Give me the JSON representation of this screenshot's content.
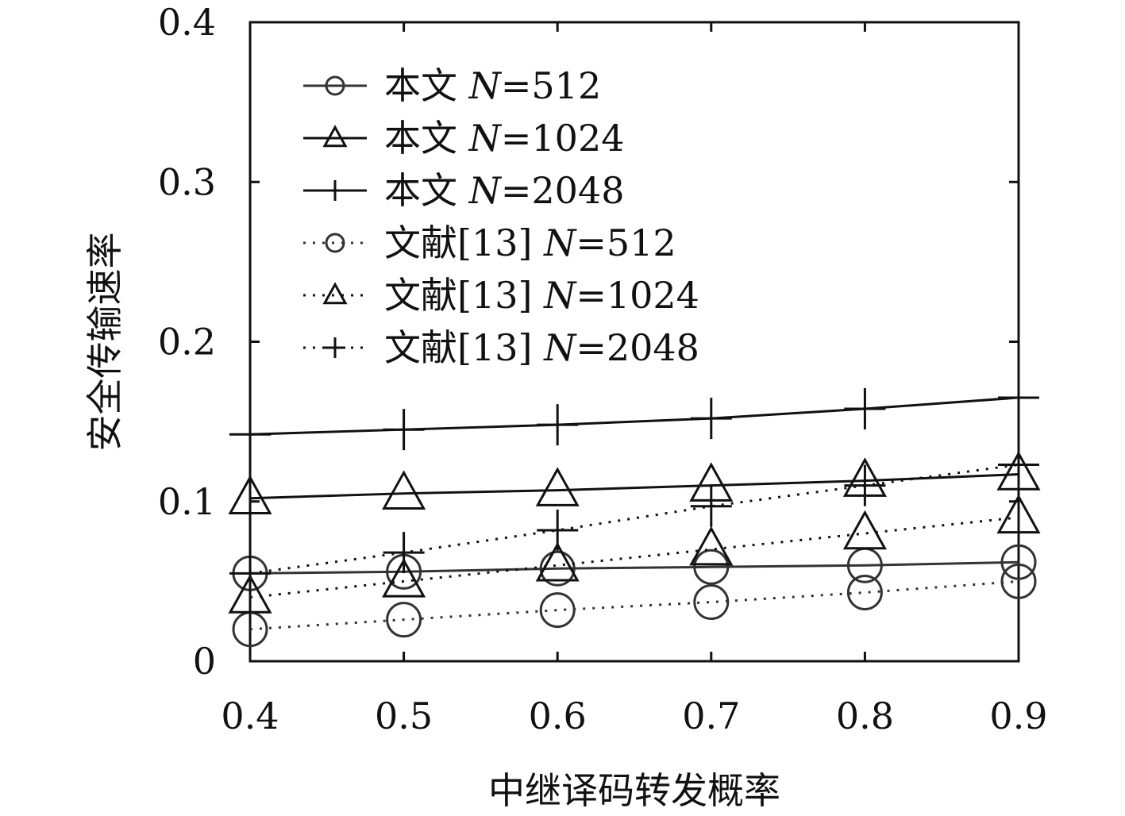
{
  "chart_data": {
    "type": "line",
    "title": "",
    "xlabel": "中继译码转发概率",
    "ylabel": "安全传输速率",
    "x": [
      0.4,
      0.5,
      0.6,
      0.7,
      0.8,
      0.9
    ],
    "xticks": [
      "0.4",
      "0.5",
      "0.6",
      "0.7",
      "0.8",
      "0.9"
    ],
    "yticks": [
      "0",
      "0.1",
      "0.2",
      "0.3",
      "0.4"
    ],
    "xlim": [
      0.4,
      0.9
    ],
    "ylim": [
      0,
      0.4
    ],
    "grid": false,
    "legend_position": "top-left",
    "series": [
      {
        "name": "本文 N=512",
        "prefix": "本文",
        "n_label": "N",
        "n_value": "=512",
        "marker": "circle",
        "line": "solid",
        "color": "#333333",
        "values": [
          0.055,
          0.056,
          0.058,
          0.059,
          0.06,
          0.062
        ]
      },
      {
        "name": "本文 N=1024",
        "prefix": "本文",
        "n_label": "N",
        "n_value": "=1024",
        "marker": "triangle",
        "line": "solid",
        "color": "#111111",
        "values": [
          0.102,
          0.105,
          0.107,
          0.11,
          0.113,
          0.117
        ]
      },
      {
        "name": "本文 N=2048",
        "prefix": "本文",
        "n_label": "N",
        "n_value": "=2048",
        "marker": "plus",
        "line": "solid",
        "color": "#111111",
        "values": [
          0.142,
          0.145,
          0.148,
          0.152,
          0.158,
          0.165
        ]
      },
      {
        "name": "文献[13] N=512",
        "prefix": "文献[13]",
        "n_label": "N",
        "n_value": "=512",
        "marker": "circle",
        "line": "dotted",
        "color": "#333333",
        "values": [
          0.02,
          0.026,
          0.032,
          0.037,
          0.043,
          0.05
        ]
      },
      {
        "name": "文献[13] N=1024",
        "prefix": "文献[13]",
        "n_label": "N",
        "n_value": "=1024",
        "marker": "triangle",
        "line": "dotted",
        "color": "#111111",
        "values": [
          0.04,
          0.05,
          0.06,
          0.07,
          0.08,
          0.09
        ]
      },
      {
        "name": "文献[13] N=2048",
        "prefix": "文献[13]",
        "n_label": "N",
        "n_value": "=2048",
        "marker": "plus",
        "line": "dotted",
        "color": "#111111",
        "values": [
          0.055,
          0.068,
          0.082,
          0.097,
          0.11,
          0.123
        ]
      }
    ]
  }
}
